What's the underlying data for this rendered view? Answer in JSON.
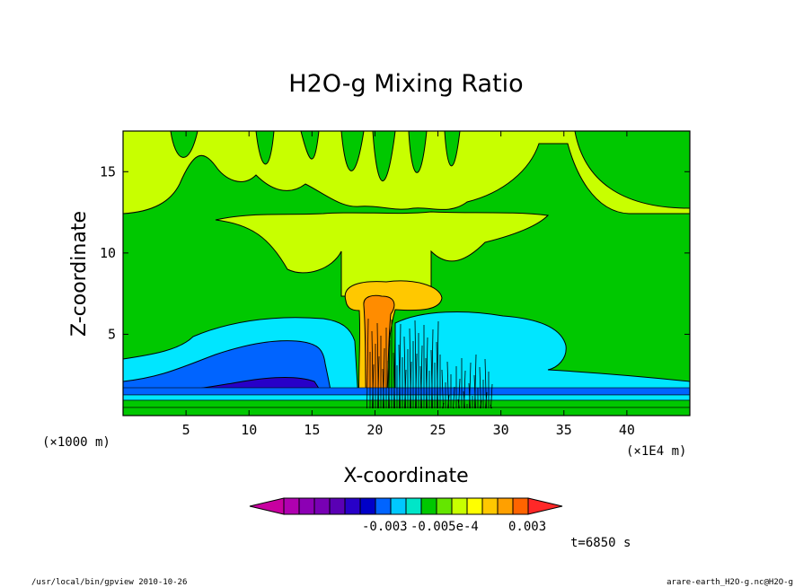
{
  "chart_data": {
    "type": "heatmap",
    "title": "H2O-g Mixing Ratio",
    "xlabel": "X-coordinate",
    "ylabel": "Z-coordinate",
    "x_unit_left": "(×1000 m)",
    "x_unit_right": "(×1E4 m)",
    "xlim": [
      0,
      45
    ],
    "ylim": [
      0,
      17.5
    ],
    "x_ticks": [
      5,
      10,
      15,
      20,
      25,
      30,
      35,
      40
    ],
    "y_ticks": [
      5,
      10,
      15
    ],
    "colorbar": {
      "colors": [
        "#c800a0",
        "#b000b0",
        "#8c00b4",
        "#7800b4",
        "#5a00b4",
        "#2800c8",
        "#0000c8",
        "#0064ff",
        "#00c8ff",
        "#00e6c8",
        "#00c800",
        "#64e600",
        "#c8ff00",
        "#ffff00",
        "#ffc800",
        "#ffa000",
        "#ff6400",
        "#ff2828"
      ],
      "labels": [
        "-0.003",
        "-0.005e-4",
        "0.003"
      ]
    },
    "time_label": "t=6850 s"
  },
  "footer": {
    "left": "/usr/local/bin/gpview  2010-10-26",
    "right": "arare-earth_H2O-g.nc@H2O-g"
  }
}
